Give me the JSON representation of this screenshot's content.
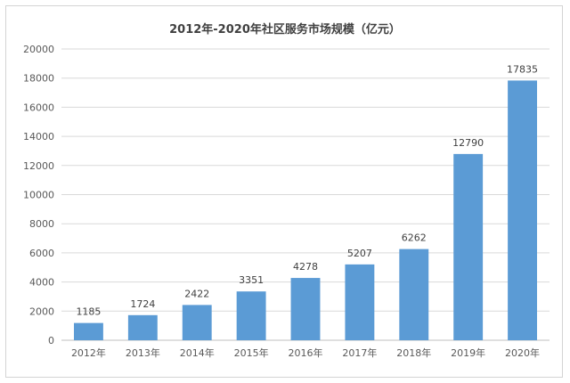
{
  "chart_data": {
    "type": "bar",
    "title": "2012年-2020年社区服务市场规模（亿元）",
    "categories": [
      "2012年",
      "2013年",
      "2014年",
      "2015年",
      "2016年",
      "2017年",
      "2018年",
      "2019年",
      "2020年"
    ],
    "values": [
      1185,
      1724,
      2422,
      3351,
      4278,
      5207,
      6262,
      12790,
      17835
    ],
    "xlabel": "",
    "ylabel": "",
    "ylim": [
      0,
      20000
    ],
    "yticks": [
      0,
      2000,
      4000,
      6000,
      8000,
      10000,
      12000,
      14000,
      16000,
      18000,
      20000
    ],
    "grid": true,
    "legend": "none",
    "bar_color": "#5b9bd5",
    "data_labels": true
  }
}
